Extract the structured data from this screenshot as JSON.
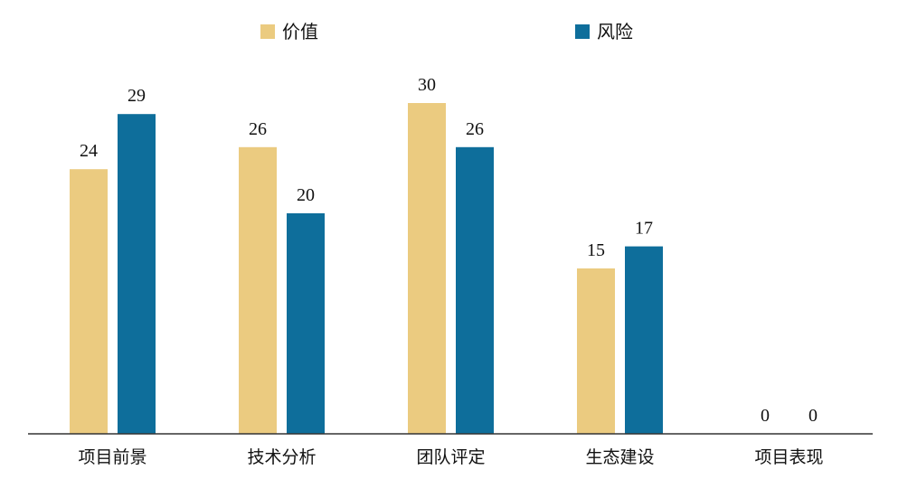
{
  "chart_data": {
    "type": "bar",
    "categories": [
      "项目前景",
      "技术分析",
      "团队评定",
      "生态建设",
      "项目表现"
    ],
    "series": [
      {
        "name": "价值",
        "values": [
          24,
          26,
          30,
          15,
          0
        ],
        "color": "#EBCB80"
      },
      {
        "name": "风险",
        "values": [
          29,
          20,
          26,
          17,
          0
        ],
        "color": "#0E6E9B"
      }
    ],
    "ylim": [
      0,
      30
    ],
    "grid": false,
    "legend_position": "top-center",
    "data_labels": true,
    "axis_color": "#333333"
  }
}
